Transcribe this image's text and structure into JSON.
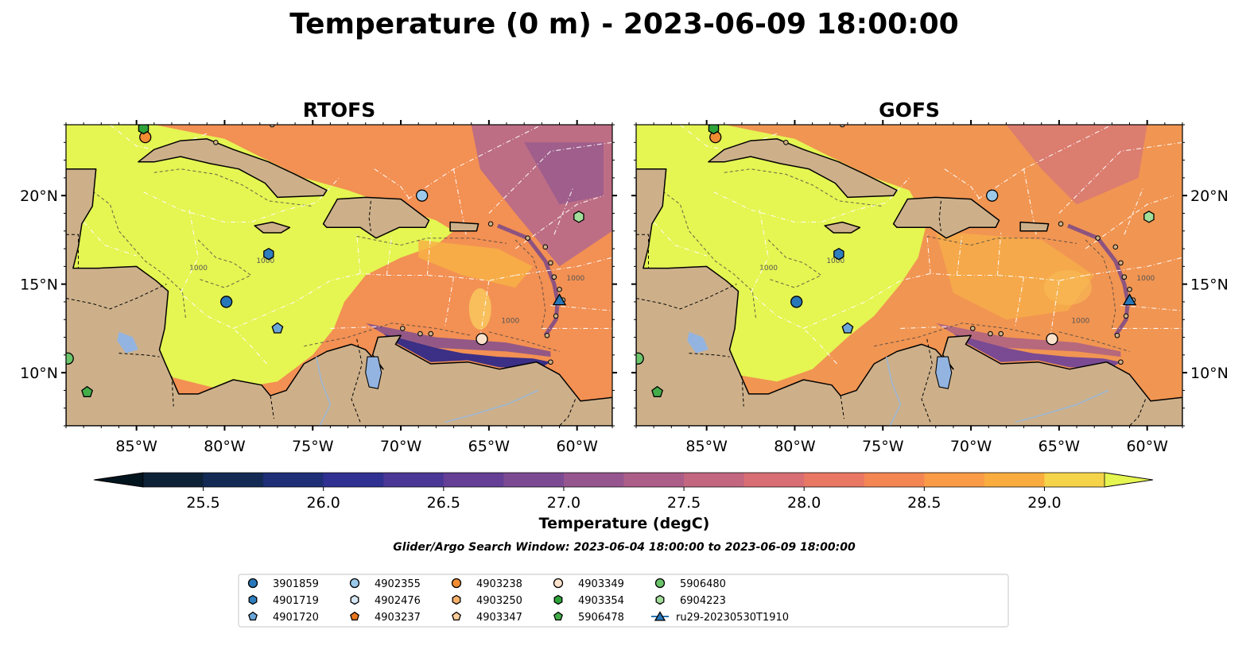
{
  "title": "Temperature (0 m) - 2023-06-09 18:00:00",
  "panels": [
    {
      "title": "RTOFS",
      "model": "rtofs"
    },
    {
      "title": "GOFS",
      "model": "gofs"
    }
  ],
  "map_extent": {
    "lon": [
      -89,
      -58
    ],
    "lat": [
      7,
      24
    ]
  },
  "lon_ticks": [
    {
      "value": -85,
      "label": "85°W"
    },
    {
      "value": -80,
      "label": "80°W"
    },
    {
      "value": -75,
      "label": "75°W"
    },
    {
      "value": -70,
      "label": "70°W"
    },
    {
      "value": -65,
      "label": "65°W"
    },
    {
      "value": -60,
      "label": "60°W"
    }
  ],
  "lat_ticks": [
    {
      "value": 10,
      "label": "10°N"
    },
    {
      "value": 15,
      "label": "15°N"
    },
    {
      "value": 20,
      "label": "20°N"
    }
  ],
  "colorbar": {
    "title": "Temperature (degC)",
    "min": 25.25,
    "max": 29.25,
    "step": 0.25,
    "extend": "both",
    "ticks": [
      {
        "value": 25.5,
        "label": "25.5"
      },
      {
        "value": 26.0,
        "label": "26.0"
      },
      {
        "value": 26.5,
        "label": "26.5"
      },
      {
        "value": 27.0,
        "label": "27.0"
      },
      {
        "value": 27.5,
        "label": "27.5"
      },
      {
        "value": 28.0,
        "label": "28.0"
      },
      {
        "value": 28.5,
        "label": "28.5"
      },
      {
        "value": 29.0,
        "label": "29.0"
      }
    ],
    "colors": [
      "#0d2236",
      "#132a55",
      "#1e2f78",
      "#2f3091",
      "#4a3795",
      "#643f95",
      "#7c4a93",
      "#96558f",
      "#ac5e88",
      "#c36680",
      "#d86e74",
      "#e87864",
      "#f48654",
      "#f99b47",
      "#faad3e",
      "#f5d44a"
    ],
    "under_color": "#02141e",
    "over_color": "#e5f552"
  },
  "window_text": "Glider/Argo Search Window: 2023-06-04 18:00:00 to 2023-06-09 18:00:00",
  "depth_contour_label": "1000",
  "colors": {
    "land": "#cdb08a",
    "lake": "#93b4e0",
    "river": "#9db6d2",
    "warm_water": "#e5f552",
    "eez": "#ffffff"
  },
  "legend": [
    {
      "id": "3901859",
      "marker": "circle",
      "color": "#2877b8"
    },
    {
      "id": "4901719",
      "marker": "hexagon",
      "color": "#2f7fbf"
    },
    {
      "id": "4901720",
      "marker": "pentagon",
      "color": "#6aa6d8"
    },
    {
      "id": "4902355",
      "marker": "circle",
      "color": "#9cc9ea"
    },
    {
      "id": "4902476",
      "marker": "hexagon",
      "color": "#d6e8f5"
    },
    {
      "id": "4903237",
      "marker": "pentagon",
      "color": "#e8761f"
    },
    {
      "id": "4903238",
      "marker": "circle",
      "color": "#f28c32"
    },
    {
      "id": "4903250",
      "marker": "hexagon",
      "color": "#f8b06b"
    },
    {
      "id": "4903347",
      "marker": "pentagon",
      "color": "#fbcd9c"
    },
    {
      "id": "4903349",
      "marker": "circle",
      "color": "#fde2cb"
    },
    {
      "id": "4903354",
      "marker": "hexagon",
      "color": "#2ea33a"
    },
    {
      "id": "5906478",
      "marker": "pentagon",
      "color": "#44ad4a"
    },
    {
      "id": "5906480",
      "marker": "circle",
      "color": "#6cc46a"
    },
    {
      "id": "6904223",
      "marker": "hexagon",
      "color": "#a3dd9a"
    },
    {
      "id": "ru29-20230530T1910",
      "marker": "triangle",
      "color": "#2877b8"
    }
  ],
  "observations": [
    {
      "id": "4902355",
      "lon": -68.8,
      "lat": 20.0
    },
    {
      "id": "4903238",
      "lon": -84.5,
      "lat": 23.3
    },
    {
      "id": "4903354",
      "lon": -84.6,
      "lat": 23.8
    },
    {
      "id": "6904223",
      "lon": -59.9,
      "lat": 18.8
    },
    {
      "id": "4901719",
      "lon": -77.5,
      "lat": 16.7
    },
    {
      "id": "3901859",
      "lon": -79.9,
      "lat": 14.0
    },
    {
      "id": "ru29-20230530T1910",
      "lon": -61.0,
      "lat": 14.1
    },
    {
      "id": "4901720",
      "lon": -77.0,
      "lat": 12.5
    },
    {
      "id": "4903349",
      "lon": -65.4,
      "lat": 11.9
    },
    {
      "id": "5906480",
      "lon": -88.9,
      "lat": 10.8
    },
    {
      "id": "5906478",
      "lon": -87.8,
      "lat": 8.9
    }
  ]
}
